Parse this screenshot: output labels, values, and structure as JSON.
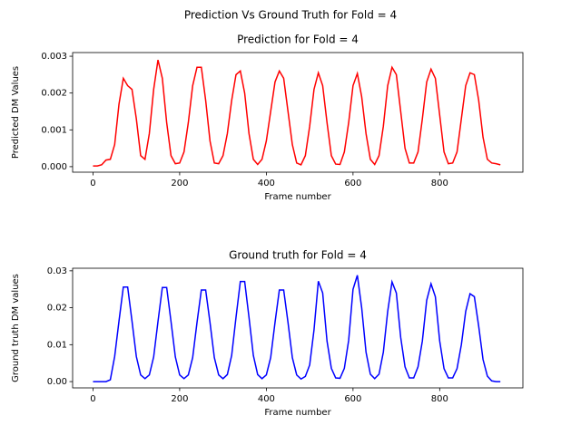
{
  "title": "Prediction Vs Ground Truth for Fold = 4",
  "chart_data": [
    {
      "type": "line",
      "title": "Prediction for Fold = 4",
      "xlabel": "Frame number",
      "ylabel": "Predicted DM Values",
      "color": "#ff0000",
      "x": [
        0,
        10,
        20,
        30,
        40,
        50,
        60,
        70,
        80,
        90,
        100,
        110,
        120,
        130,
        140,
        150,
        160,
        170,
        180,
        190,
        200,
        210,
        220,
        230,
        240,
        250,
        260,
        270,
        280,
        290,
        300,
        310,
        320,
        330,
        340,
        350,
        360,
        370,
        380,
        390,
        400,
        410,
        420,
        430,
        440,
        450,
        460,
        470,
        480,
        490,
        500,
        510,
        520,
        530,
        540,
        550,
        560,
        570,
        580,
        590,
        600,
        610,
        620,
        630,
        640,
        650,
        660,
        670,
        680,
        690,
        700,
        710,
        720,
        730,
        740,
        750,
        760,
        770,
        780,
        790,
        800,
        810,
        820,
        830,
        840,
        850,
        860,
        870,
        880,
        890,
        900,
        910,
        920,
        930,
        940
      ],
      "values": [
        2e-05,
        2e-05,
        5e-05,
        0.00018,
        0.0002,
        0.0006,
        0.0017,
        0.0024,
        0.0022,
        0.0021,
        0.0013,
        0.0003,
        0.0002,
        0.0009,
        0.0021,
        0.0029,
        0.0024,
        0.0012,
        0.0003,
        8e-05,
        0.0001,
        0.0004,
        0.0012,
        0.0022,
        0.0027,
        0.0027,
        0.0018,
        0.0007,
        0.0001,
        8e-05,
        0.0003,
        0.0009,
        0.0018,
        0.0025,
        0.0026,
        0.002,
        0.0009,
        0.0002,
        6e-05,
        0.0002,
        0.0007,
        0.0015,
        0.0023,
        0.0026,
        0.0024,
        0.0015,
        0.0006,
        0.0001,
        5e-05,
        0.0003,
        0.0011,
        0.0021,
        0.00255,
        0.0022,
        0.0012,
        0.0003,
        7e-05,
        6e-05,
        0.0004,
        0.0012,
        0.0022,
        0.00253,
        0.0019,
        0.0009,
        0.0002,
        6e-05,
        0.0003,
        0.0011,
        0.0022,
        0.0027,
        0.0025,
        0.0015,
        0.0005,
        0.0001,
        0.0001,
        0.0004,
        0.0013,
        0.0023,
        0.00265,
        0.0024,
        0.0014,
        0.0004,
        8e-05,
        0.0001,
        0.0004,
        0.0013,
        0.0022,
        0.00255,
        0.0025,
        0.0018,
        0.0008,
        0.0002,
        0.0001,
        8e-05,
        5e-05
      ],
      "xlim": [
        -47,
        992
      ],
      "xticks": [
        0,
        200,
        400,
        600,
        800
      ],
      "ylim": [
        -0.00015,
        0.0031
      ],
      "yticks": [
        {
          "value": 0,
          "label": "0.000"
        },
        {
          "value": 0.001,
          "label": "0.001"
        },
        {
          "value": 0.002,
          "label": "0.002"
        },
        {
          "value": 0.003,
          "label": "0.003"
        }
      ]
    },
    {
      "type": "line",
      "title": "Ground truth for Fold = 4",
      "xlabel": "Frame number",
      "ylabel": "Ground truth DM values",
      "color": "#0000ff",
      "x": [
        0,
        10,
        20,
        30,
        40,
        50,
        60,
        70,
        80,
        90,
        100,
        110,
        120,
        130,
        140,
        150,
        160,
        170,
        180,
        190,
        200,
        210,
        220,
        230,
        240,
        250,
        260,
        270,
        280,
        290,
        300,
        310,
        320,
        330,
        340,
        350,
        360,
        370,
        380,
        390,
        400,
        410,
        420,
        430,
        440,
        450,
        460,
        470,
        480,
        490,
        500,
        510,
        520,
        530,
        540,
        550,
        560,
        570,
        580,
        590,
        600,
        610,
        620,
        630,
        640,
        650,
        660,
        670,
        680,
        690,
        700,
        710,
        720,
        730,
        740,
        750,
        760,
        770,
        780,
        790,
        800,
        810,
        820,
        830,
        840,
        850,
        860,
        870,
        880,
        890,
        900,
        910,
        920,
        930,
        940
      ],
      "values": [
        0,
        0,
        0,
        0,
        0.0005,
        0.0068,
        0.0164,
        0.0256,
        0.0256,
        0.0164,
        0.0068,
        0.0018,
        0.0008,
        0.0018,
        0.0067,
        0.0163,
        0.0255,
        0.0255,
        0.0163,
        0.0067,
        0.0018,
        0.0008,
        0.0018,
        0.0065,
        0.016,
        0.0248,
        0.0248,
        0.016,
        0.0065,
        0.0018,
        0.0008,
        0.0019,
        0.0071,
        0.0174,
        0.0271,
        0.0271,
        0.0174,
        0.0071,
        0.0019,
        0.0008,
        0.0018,
        0.0065,
        0.016,
        0.0248,
        0.0248,
        0.016,
        0.0065,
        0.0018,
        0.0007,
        0.0014,
        0.0045,
        0.014,
        0.0272,
        0.024,
        0.011,
        0.0036,
        0.001,
        0.0009,
        0.0036,
        0.0112,
        0.025,
        0.0288,
        0.02,
        0.008,
        0.002,
        0.0008,
        0.002,
        0.008,
        0.019,
        0.027,
        0.024,
        0.012,
        0.004,
        0.001,
        0.001,
        0.004,
        0.011,
        0.022,
        0.0265,
        0.023,
        0.011,
        0.0035,
        0.001,
        0.001,
        0.0035,
        0.01,
        0.019,
        0.0238,
        0.023,
        0.015,
        0.006,
        0.0015,
        0.0002,
        0,
        0
      ],
      "xlim": [
        -47,
        992
      ],
      "xticks": [
        0,
        200,
        400,
        600,
        800
      ],
      "ylim": [
        -0.0017,
        0.0307
      ],
      "yticks": [
        {
          "value": 0,
          "label": "0.00"
        },
        {
          "value": 0.01,
          "label": "0.01"
        },
        {
          "value": 0.02,
          "label": "0.02"
        },
        {
          "value": 0.03,
          "label": "0.03"
        }
      ]
    }
  ]
}
